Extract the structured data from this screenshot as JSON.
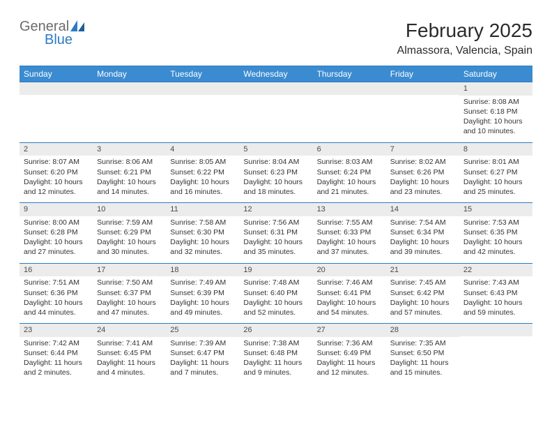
{
  "logo": {
    "word1": "General",
    "word2": "Blue"
  },
  "colors": {
    "accent": "#3b8bd0",
    "accent_dark": "#2b7bc2",
    "daynum_bg": "#ececec",
    "text": "#333333",
    "logo_gray": "#6b6b6b",
    "background": "#ffffff"
  },
  "title": "February 2025",
  "location": "Almassora, Valencia, Spain",
  "weekdays": [
    "Sunday",
    "Monday",
    "Tuesday",
    "Wednesday",
    "Thursday",
    "Friday",
    "Saturday"
  ],
  "weeks": [
    [
      {
        "num": "",
        "lines": [
          "",
          "",
          "",
          ""
        ]
      },
      {
        "num": "",
        "lines": [
          "",
          "",
          "",
          ""
        ]
      },
      {
        "num": "",
        "lines": [
          "",
          "",
          "",
          ""
        ]
      },
      {
        "num": "",
        "lines": [
          "",
          "",
          "",
          ""
        ]
      },
      {
        "num": "",
        "lines": [
          "",
          "",
          "",
          ""
        ]
      },
      {
        "num": "",
        "lines": [
          "",
          "",
          "",
          ""
        ]
      },
      {
        "num": "1",
        "lines": [
          "Sunrise: 8:08 AM",
          "Sunset: 6:18 PM",
          "Daylight: 10 hours",
          "and 10 minutes."
        ]
      }
    ],
    [
      {
        "num": "2",
        "lines": [
          "Sunrise: 8:07 AM",
          "Sunset: 6:20 PM",
          "Daylight: 10 hours",
          "and 12 minutes."
        ]
      },
      {
        "num": "3",
        "lines": [
          "Sunrise: 8:06 AM",
          "Sunset: 6:21 PM",
          "Daylight: 10 hours",
          "and 14 minutes."
        ]
      },
      {
        "num": "4",
        "lines": [
          "Sunrise: 8:05 AM",
          "Sunset: 6:22 PM",
          "Daylight: 10 hours",
          "and 16 minutes."
        ]
      },
      {
        "num": "5",
        "lines": [
          "Sunrise: 8:04 AM",
          "Sunset: 6:23 PM",
          "Daylight: 10 hours",
          "and 18 minutes."
        ]
      },
      {
        "num": "6",
        "lines": [
          "Sunrise: 8:03 AM",
          "Sunset: 6:24 PM",
          "Daylight: 10 hours",
          "and 21 minutes."
        ]
      },
      {
        "num": "7",
        "lines": [
          "Sunrise: 8:02 AM",
          "Sunset: 6:26 PM",
          "Daylight: 10 hours",
          "and 23 minutes."
        ]
      },
      {
        "num": "8",
        "lines": [
          "Sunrise: 8:01 AM",
          "Sunset: 6:27 PM",
          "Daylight: 10 hours",
          "and 25 minutes."
        ]
      }
    ],
    [
      {
        "num": "9",
        "lines": [
          "Sunrise: 8:00 AM",
          "Sunset: 6:28 PM",
          "Daylight: 10 hours",
          "and 27 minutes."
        ]
      },
      {
        "num": "10",
        "lines": [
          "Sunrise: 7:59 AM",
          "Sunset: 6:29 PM",
          "Daylight: 10 hours",
          "and 30 minutes."
        ]
      },
      {
        "num": "11",
        "lines": [
          "Sunrise: 7:58 AM",
          "Sunset: 6:30 PM",
          "Daylight: 10 hours",
          "and 32 minutes."
        ]
      },
      {
        "num": "12",
        "lines": [
          "Sunrise: 7:56 AM",
          "Sunset: 6:31 PM",
          "Daylight: 10 hours",
          "and 35 minutes."
        ]
      },
      {
        "num": "13",
        "lines": [
          "Sunrise: 7:55 AM",
          "Sunset: 6:33 PM",
          "Daylight: 10 hours",
          "and 37 minutes."
        ]
      },
      {
        "num": "14",
        "lines": [
          "Sunrise: 7:54 AM",
          "Sunset: 6:34 PM",
          "Daylight: 10 hours",
          "and 39 minutes."
        ]
      },
      {
        "num": "15",
        "lines": [
          "Sunrise: 7:53 AM",
          "Sunset: 6:35 PM",
          "Daylight: 10 hours",
          "and 42 minutes."
        ]
      }
    ],
    [
      {
        "num": "16",
        "lines": [
          "Sunrise: 7:51 AM",
          "Sunset: 6:36 PM",
          "Daylight: 10 hours",
          "and 44 minutes."
        ]
      },
      {
        "num": "17",
        "lines": [
          "Sunrise: 7:50 AM",
          "Sunset: 6:37 PM",
          "Daylight: 10 hours",
          "and 47 minutes."
        ]
      },
      {
        "num": "18",
        "lines": [
          "Sunrise: 7:49 AM",
          "Sunset: 6:39 PM",
          "Daylight: 10 hours",
          "and 49 minutes."
        ]
      },
      {
        "num": "19",
        "lines": [
          "Sunrise: 7:48 AM",
          "Sunset: 6:40 PM",
          "Daylight: 10 hours",
          "and 52 minutes."
        ]
      },
      {
        "num": "20",
        "lines": [
          "Sunrise: 7:46 AM",
          "Sunset: 6:41 PM",
          "Daylight: 10 hours",
          "and 54 minutes."
        ]
      },
      {
        "num": "21",
        "lines": [
          "Sunrise: 7:45 AM",
          "Sunset: 6:42 PM",
          "Daylight: 10 hours",
          "and 57 minutes."
        ]
      },
      {
        "num": "22",
        "lines": [
          "Sunrise: 7:43 AM",
          "Sunset: 6:43 PM",
          "Daylight: 10 hours",
          "and 59 minutes."
        ]
      }
    ],
    [
      {
        "num": "23",
        "lines": [
          "Sunrise: 7:42 AM",
          "Sunset: 6:44 PM",
          "Daylight: 11 hours",
          "and 2 minutes."
        ]
      },
      {
        "num": "24",
        "lines": [
          "Sunrise: 7:41 AM",
          "Sunset: 6:45 PM",
          "Daylight: 11 hours",
          "and 4 minutes."
        ]
      },
      {
        "num": "25",
        "lines": [
          "Sunrise: 7:39 AM",
          "Sunset: 6:47 PM",
          "Daylight: 11 hours",
          "and 7 minutes."
        ]
      },
      {
        "num": "26",
        "lines": [
          "Sunrise: 7:38 AM",
          "Sunset: 6:48 PM",
          "Daylight: 11 hours",
          "and 9 minutes."
        ]
      },
      {
        "num": "27",
        "lines": [
          "Sunrise: 7:36 AM",
          "Sunset: 6:49 PM",
          "Daylight: 11 hours",
          "and 12 minutes."
        ]
      },
      {
        "num": "28",
        "lines": [
          "Sunrise: 7:35 AM",
          "Sunset: 6:50 PM",
          "Daylight: 11 hours",
          "and 15 minutes."
        ]
      },
      {
        "num": "",
        "lines": [
          "",
          "",
          "",
          ""
        ]
      }
    ]
  ]
}
